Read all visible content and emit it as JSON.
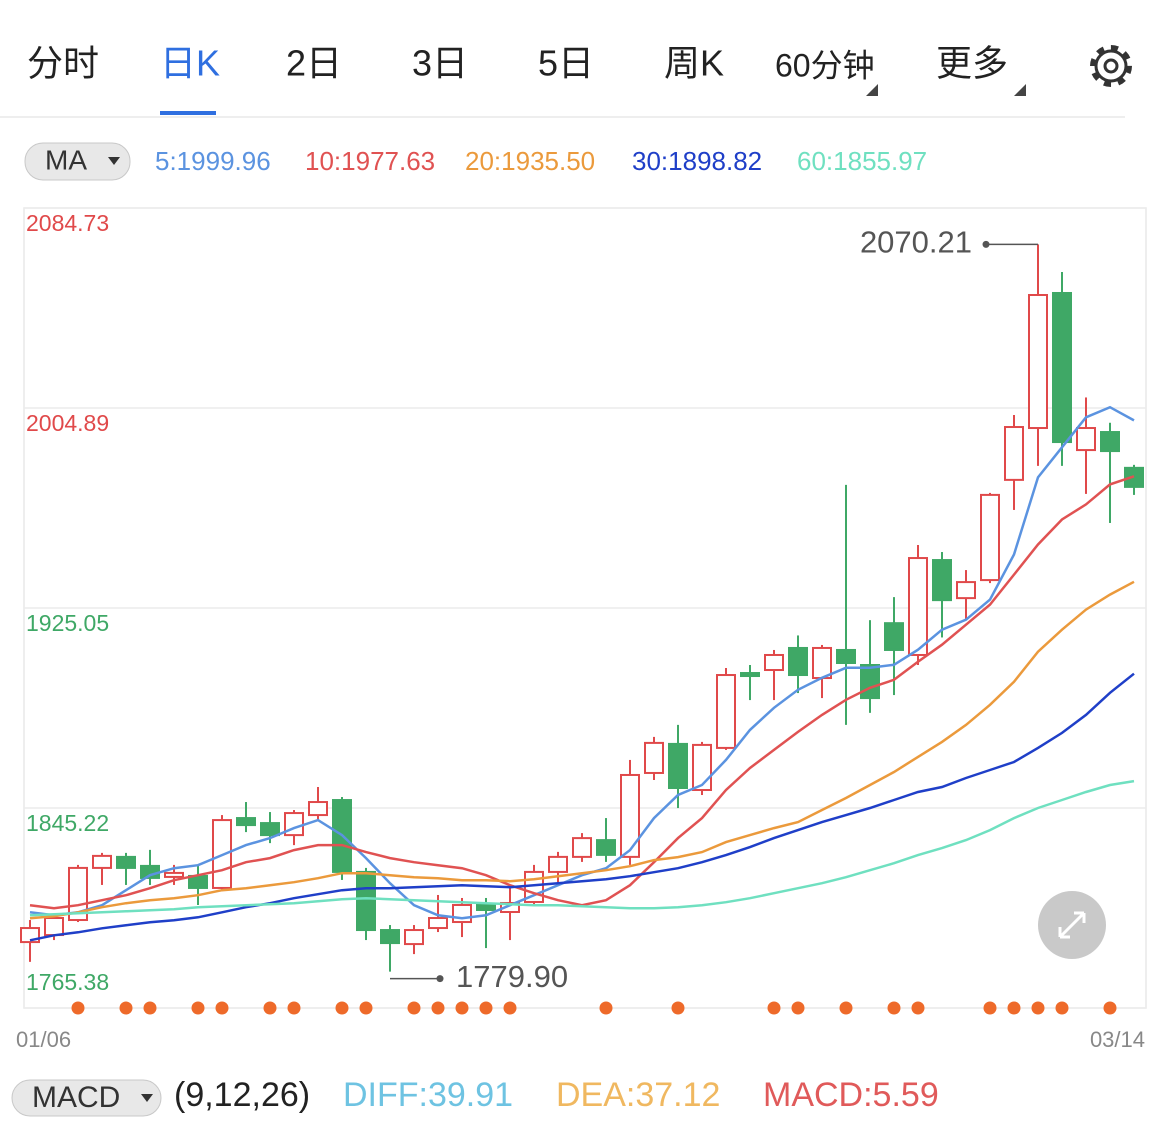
{
  "tabs": [
    "分时",
    "日K",
    "2日",
    "3日",
    "5日",
    "周K",
    "60分钟",
    "更多"
  ],
  "ma_selector": "MA",
  "chart_data": {
    "type": "candlestick",
    "categories": [
      "01/06",
      null,
      null,
      null,
      null,
      null,
      null,
      null,
      null,
      null,
      null,
      null,
      null,
      null,
      null,
      null,
      null,
      null,
      null,
      null,
      null,
      null,
      null,
      null,
      null,
      null,
      null,
      null,
      null,
      null,
      null,
      null,
      null,
      null,
      null,
      null,
      null,
      null,
      null,
      null,
      null,
      null,
      null,
      null,
      null,
      null,
      "03/14"
    ],
    "open": [
      1791.7,
      1794.5,
      1800.5,
      1821.3,
      1825.7,
      1822.1,
      1817.7,
      1818.1,
      1813.3,
      1841.2,
      1839.2,
      1834.4,
      1842.4,
      1848.4,
      1819.7,
      1796.5,
      1790.9,
      1797.3,
      1799.7,
      1806.5,
      1803.7,
      1807.7,
      1819.7,
      1825.7,
      1832.4,
      1825.7,
      1859.2,
      1870.8,
      1852.4,
      1869.2,
      1899.1,
      1900.3,
      1909.1,
      1897.1,
      1908.3,
      1902.3,
      1919.0,
      1906.3,
      1944.2,
      1929.0,
      1936.2,
      1976.2,
      1996.9,
      2050.8,
      1988.1,
      1995.3,
      1981.0
    ],
    "high": [
      1800.5,
      1802.5,
      1822.5,
      1827.3,
      1827.3,
      1828.5,
      1822.5,
      1822.5,
      1842.4,
      1847.6,
      1843.6,
      1844.4,
      1853.6,
      1849.6,
      1821.3,
      1798.5,
      1798.5,
      1810.5,
      1809.3,
      1809.3,
      1814.5,
      1822.5,
      1827.7,
      1835.2,
      1841.2,
      1864.4,
      1873.6,
      1878.4,
      1871.6,
      1901.1,
      1902.3,
      1908.3,
      1914.1,
      1910.3,
      1974.2,
      1920.2,
      1929.4,
      1950.2,
      1947.4,
      1940.2,
      1971.0,
      2002.1,
      2070.21,
      2059.2,
      2009.1,
      1999.0,
      1982.2
    ],
    "low": [
      1783.8,
      1792.5,
      1799.7,
      1814.5,
      1814.5,
      1814.5,
      1814.5,
      1806.5,
      1812.5,
      1835.6,
      1831.2,
      1830.4,
      1840.4,
      1816.5,
      1792.5,
      1779.9,
      1786.9,
      1795.7,
      1793.7,
      1789.3,
      1792.5,
      1806.5,
      1814.5,
      1823.7,
      1823.7,
      1822.5,
      1856.4,
      1845.2,
      1850.4,
      1868.4,
      1888.3,
      1888.3,
      1891.1,
      1889.1,
      1878.4,
      1883.2,
      1890.3,
      1902.3,
      1913.3,
      1920.2,
      1935.0,
      1964.2,
      1981.8,
      1981.8,
      1970.6,
      1959.0,
      1970.2
    ],
    "close": [
      1797.3,
      1801.3,
      1821.3,
      1826.1,
      1821.3,
      1817.3,
      1819.3,
      1813.3,
      1840.4,
      1838.4,
      1834.4,
      1843.2,
      1847.6,
      1819.7,
      1796.5,
      1791.3,
      1796.5,
      1801.3,
      1806.5,
      1804.5,
      1807.3,
      1819.7,
      1825.7,
      1833.2,
      1826.5,
      1858.4,
      1871.2,
      1853.2,
      1870.4,
      1898.3,
      1897.9,
      1906.3,
      1898.3,
      1909.1,
      1903.1,
      1889.1,
      1908.3,
      1945.0,
      1928.2,
      1935.4,
      1970.2,
      1997.3,
      2050.0,
      1991.3,
      1996.9,
      1987.7,
      1973.4
    ],
    "up_color": "#e0494a",
    "down_color": "#3fa866",
    "series": [
      {
        "name": "5:1999.96",
        "color": "#5b93e0",
        "values": [
          1803.6,
          1802.4,
          1803.6,
          1806.4,
          1812.4,
          1818.4,
          1821.2,
          1822.4,
          1826.4,
          1830.4,
          1833.2,
          1837.2,
          1840.4,
          1834.4,
          1825.2,
          1815.2,
          1806.4,
          1802.4,
          1801.2,
          1802.4,
          1806.4,
          1810.4,
          1814.4,
          1818.4,
          1821.2,
          1828.4,
          1841.2,
          1850.4,
          1854.4,
          1864.4,
          1876.4,
          1885.2,
          1892.4,
          1897.2,
          1901.2,
          1901.2,
          1902.4,
          1908.4,
          1916.4,
          1920.4,
          1928.4,
          1946.4,
          1977.2,
          1989.2,
          2001.2,
          2005.2,
          1999.96
        ]
      },
      {
        "name": "10:1977.63",
        "color": "#e05252",
        "values": [
          1806.4,
          1805.2,
          1806.4,
          1808.4,
          1810.4,
          1813.2,
          1816.4,
          1818.4,
          1820.4,
          1823.6,
          1825.2,
          1828.4,
          1830.4,
          1830.4,
          1827.6,
          1825.2,
          1823.6,
          1822.4,
          1821.2,
          1818.4,
          1814.4,
          1811.2,
          1808.4,
          1806.4,
          1808.4,
          1814.4,
          1823.6,
          1833.2,
          1841.2,
          1852.4,
          1861.2,
          1868.4,
          1875.6,
          1882.4,
          1888.4,
          1893.2,
          1896.4,
          1903.6,
          1910.4,
          1918.4,
          1926.4,
          1938.4,
          1950.4,
          1960.4,
          1966.4,
          1974.4,
          1977.63
        ]
      },
      {
        "name": "20:1935.50",
        "color": "#eb9a3c",
        "values": [
          1801.2,
          1802.0,
          1803.6,
          1805.6,
          1807.2,
          1808.4,
          1809.2,
          1810.4,
          1812.4,
          1813.2,
          1814.4,
          1815.6,
          1817.2,
          1819.2,
          1819.2,
          1818.4,
          1817.6,
          1817.2,
          1816.4,
          1816.4,
          1816.0,
          1816.8,
          1818.0,
          1819.2,
          1820.4,
          1822.0,
          1824.4,
          1825.6,
          1827.6,
          1831.6,
          1834.4,
          1837.2,
          1839.6,
          1844.4,
          1849.2,
          1854.4,
          1859.6,
          1865.6,
          1871.6,
          1878.4,
          1886.4,
          1895.6,
          1907.6,
          1916.4,
          1924.4,
          1930.4,
          1935.5
        ]
      },
      {
        "name": "30:1898.82",
        "color": "#1f3fc8",
        "values": [
          1792.4,
          1794.4,
          1795.6,
          1797.2,
          1798.4,
          1799.6,
          1800.4,
          1801.6,
          1803.6,
          1805.6,
          1807.2,
          1809.2,
          1810.8,
          1812.4,
          1813.2,
          1813.2,
          1813.6,
          1814.0,
          1814.4,
          1814.0,
          1813.6,
          1814.4,
          1815.2,
          1816.0,
          1816.8,
          1818.0,
          1819.6,
          1821.2,
          1823.6,
          1826.4,
          1829.6,
          1833.2,
          1836.4,
          1839.6,
          1842.4,
          1845.2,
          1848.4,
          1851.6,
          1853.6,
          1857.2,
          1860.4,
          1863.6,
          1869.2,
          1875.2,
          1882.4,
          1891.2,
          1898.82
        ]
      },
      {
        "name": "60:1855.97",
        "color": "#6fe0c0",
        "values": [
          1802.4,
          1802.8,
          1803.2,
          1803.6,
          1804.0,
          1804.4,
          1804.8,
          1805.6,
          1806.0,
          1806.4,
          1806.8,
          1807.2,
          1808.0,
          1808.8,
          1809.2,
          1808.8,
          1808.4,
          1808.0,
          1807.6,
          1807.2,
          1806.8,
          1806.4,
          1806.4,
          1806.0,
          1805.6,
          1805.2,
          1805.2,
          1805.6,
          1806.4,
          1807.6,
          1809.2,
          1811.2,
          1813.2,
          1815.2,
          1817.6,
          1820.4,
          1823.2,
          1826.4,
          1829.2,
          1832.4,
          1836.4,
          1841.2,
          1845.2,
          1848.4,
          1851.6,
          1854.4,
          1855.97
        ]
      }
    ],
    "ylim": [
      1765.38,
      2084.73
    ],
    "yticks": [
      2084.73,
      2004.89,
      1925.05,
      1845.22,
      1765.38
    ],
    "ytick_colors": [
      "#e0494a",
      "#e0494a",
      "#3fa866",
      "#3fa866",
      "#3fa866"
    ],
    "grid": true,
    "high_label": {
      "value": 2070.21
    },
    "low_label": {
      "value": 1779.9,
      "label": "1779.90"
    },
    "signals": [
      false,
      false,
      true,
      false,
      true,
      true,
      false,
      true,
      true,
      false,
      true,
      true,
      false,
      true,
      true,
      false,
      true,
      true,
      true,
      true,
      true,
      false,
      false,
      false,
      true,
      false,
      false,
      true,
      false,
      false,
      false,
      true,
      true,
      false,
      true,
      false,
      true,
      true,
      false,
      false,
      true,
      true,
      true,
      true,
      false,
      true,
      false
    ],
    "signal_color": "#ee6a2a"
  },
  "indicator": {
    "selector": "MACD",
    "params": "(9,12,26)",
    "items": [
      {
        "text": "DIFF:39.91",
        "color": "#6ec3e2"
      },
      {
        "text": "DEA:37.12",
        "color": "#f0b860"
      },
      {
        "text": "MACD:5.59",
        "color": "#e05a5a"
      }
    ]
  }
}
